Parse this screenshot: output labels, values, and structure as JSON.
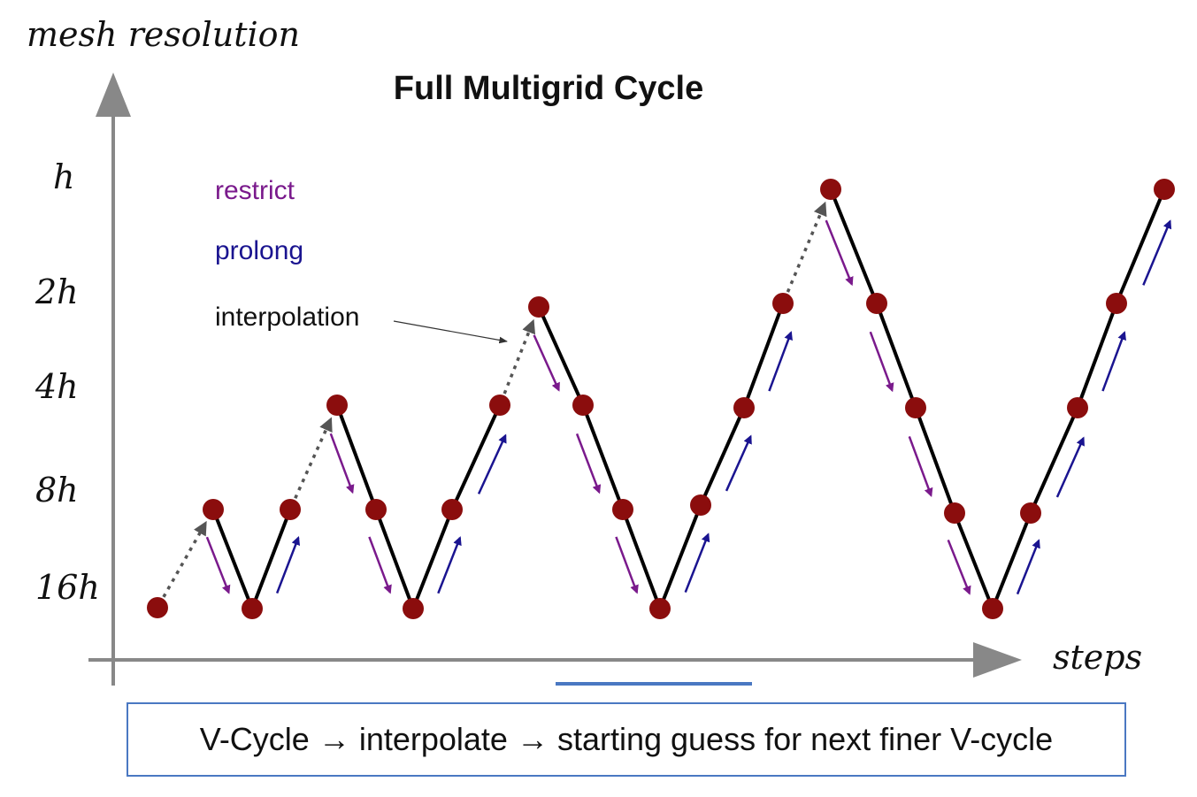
{
  "title": "Full Multigrid Cycle",
  "y_axis_label": "mesh resolution",
  "x_axis_label": "steps",
  "levels": [
    "h",
    "2h",
    "4h",
    "8h",
    "16h"
  ],
  "legend": [
    {
      "label": "restrict",
      "color": "#7a1a8c"
    },
    {
      "label": "prolong",
      "color": "#1a1490"
    },
    {
      "label": "interpolation",
      "color": "#111111"
    }
  ],
  "caption": "V-Cycle → interpolate → starting guess for next finer V-cycle",
  "colors": {
    "node": "#8b0d0d",
    "line": "#000000",
    "axis": "#888888",
    "interp": "#555555",
    "restrict": "#7a1a8c",
    "prolong": "#1a1490",
    "caption_border": "#4a78c2",
    "underline": "#4a78c2"
  }
}
